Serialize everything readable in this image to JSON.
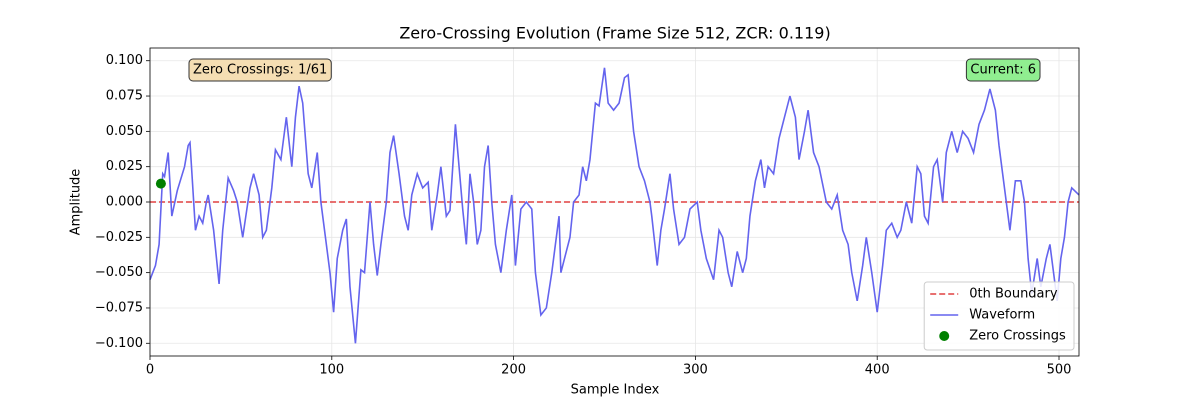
{
  "chart_data": {
    "type": "line",
    "title": "Zero-Crossing Evolution (Frame Size 512, ZCR: 0.119)",
    "xlabel": "Sample Index",
    "ylabel": "Amplitude",
    "xlim": [
      0,
      511
    ],
    "xticks": [
      0,
      100,
      200,
      300,
      400,
      500
    ],
    "ylim": [
      -0.109,
      0.109
    ],
    "yticks": [
      {
        "value": -0.1,
        "label": "−0.100"
      },
      {
        "value": -0.075,
        "label": "−0.075"
      },
      {
        "value": -0.05,
        "label": "−0.050"
      },
      {
        "value": -0.025,
        "label": "−0.025"
      },
      {
        "value": 0,
        "label": "0.000"
      },
      {
        "value": 0.025,
        "label": "0.025"
      },
      {
        "value": 0.05,
        "label": "0.050"
      },
      {
        "value": 0.075,
        "label": "0.075"
      },
      {
        "value": 0.1,
        "label": "0.100"
      }
    ],
    "grid": true,
    "legend": "lower right",
    "hline": {
      "name": "0th Boundary",
      "value": 0,
      "color": "#e04040"
    },
    "series": [
      {
        "name": "Waveform",
        "color": "#6464ee",
        "x": [
          0,
          3,
          5,
          7,
          8,
          10,
          12,
          15,
          19,
          21,
          22,
          25,
          27,
          29,
          31,
          32,
          35,
          38,
          40,
          43,
          46,
          48,
          51,
          55,
          57,
          60,
          62,
          64,
          67,
          69,
          72,
          75,
          78,
          80,
          82,
          84,
          87,
          89,
          92,
          94,
          96,
          99,
          101,
          103,
          106,
          108,
          110,
          113,
          116,
          118,
          121,
          123,
          125,
          127,
          130,
          132,
          134,
          137,
          140,
          142,
          144,
          147,
          150,
          153,
          155,
          158,
          160,
          163,
          165,
          168,
          170,
          172,
          174,
          176,
          178,
          180,
          182,
          184,
          186,
          188,
          190,
          193,
          196,
          199,
          201,
          204,
          207,
          210,
          212,
          215,
          218,
          221,
          223,
          225,
          226,
          229,
          231,
          233,
          236,
          238,
          240,
          242,
          245,
          247,
          250,
          252,
          255,
          258,
          261,
          263,
          266,
          269,
          272,
          275,
          276,
          279,
          281,
          283,
          286,
          288,
          291,
          294,
          297,
          301,
          303,
          306,
          310,
          313,
          315,
          318,
          320,
          323,
          326,
          328,
          330,
          333,
          336,
          338,
          340,
          343,
          346,
          349,
          352,
          355,
          357,
          360,
          362,
          365,
          368,
          372,
          375,
          378,
          381,
          384,
          386,
          389,
          392,
          394,
          397,
          400,
          403,
          405,
          408,
          411,
          413,
          416,
          419,
          422,
          424,
          426,
          428,
          431,
          433,
          436,
          438,
          441,
          444,
          447,
          450,
          453,
          456,
          459,
          462,
          465,
          467,
          469,
          471,
          473,
          476,
          479,
          481,
          483,
          485,
          488,
          490,
          493,
          495,
          497,
          499,
          501,
          503,
          505,
          507,
          511
        ],
        "values": [
          -0.055,
          -0.045,
          -0.03,
          0.02,
          0.018,
          0.035,
          -0.01,
          0.008,
          0.025,
          0.04,
          0.042,
          -0.02,
          -0.01,
          -0.015,
          0,
          0.005,
          -0.02,
          -0.058,
          -0.02,
          0.017,
          0.008,
          0,
          -0.025,
          0.01,
          0.02,
          0.005,
          -0.025,
          -0.02,
          0.01,
          0.037,
          0.03,
          0.06,
          0.025,
          0.06,
          0.082,
          0.07,
          0.02,
          0.01,
          0.035,
          0,
          -0.02,
          -0.05,
          -0.078,
          -0.04,
          -0.02,
          -0.012,
          -0.06,
          -0.1,
          -0.048,
          -0.05,
          0,
          -0.03,
          -0.052,
          -0.03,
          0,
          0.035,
          0.047,
          0.02,
          -0.01,
          -0.02,
          0.005,
          0.02,
          0.01,
          0.014,
          -0.02,
          0.005,
          0.025,
          -0.01,
          -0.006,
          0.055,
          0.025,
          -0.005,
          -0.03,
          0.02,
          0,
          -0.03,
          -0.02,
          0.025,
          0.04,
          0,
          -0.03,
          -0.05,
          -0.02,
          0.005,
          -0.045,
          -0.005,
          0,
          -0.005,
          -0.05,
          -0.08,
          -0.075,
          -0.05,
          -0.03,
          -0.01,
          -0.05,
          -0.035,
          -0.025,
          0,
          0.005,
          0.025,
          0.015,
          0.03,
          0.07,
          0.068,
          0.095,
          0.07,
          0.065,
          0.07,
          0.088,
          0.09,
          0.05,
          0.025,
          0.015,
          0,
          -0.01,
          -0.045,
          -0.02,
          -0.005,
          0.02,
          -0.005,
          -0.03,
          -0.025,
          -0.005,
          0,
          -0.02,
          -0.04,
          -0.055,
          -0.02,
          -0.025,
          -0.05,
          -0.06,
          -0.035,
          -0.05,
          -0.04,
          -0.01,
          0.015,
          0.03,
          0.01,
          0.025,
          0.02,
          0.045,
          0.06,
          0.075,
          0.06,
          0.03,
          0.05,
          0.065,
          0.035,
          0.025,
          0,
          -0.005,
          0.005,
          -0.02,
          -0.03,
          -0.05,
          -0.07,
          -0.045,
          -0.025,
          -0.05,
          -0.078,
          -0.045,
          -0.02,
          -0.015,
          -0.025,
          -0.02,
          0,
          -0.015,
          0.025,
          0.02,
          -0.01,
          -0.015,
          0.025,
          0.03,
          0,
          0.035,
          0.05,
          0.035,
          0.05,
          0.045,
          0.035,
          0.055,
          0.065,
          0.08,
          0.065,
          0.04,
          0.02,
          0,
          -0.02,
          0.015,
          0.015,
          0,
          -0.04,
          -0.065,
          -0.04,
          -0.06,
          -0.04,
          -0.03,
          -0.05,
          -0.07,
          -0.04,
          -0.025,
          0,
          0.01,
          0.005
        ]
      },
      {
        "name": "Zero Crossings",
        "type": "scatter",
        "color": "#008000",
        "x": [
          6
        ],
        "values": [
          0.013
        ]
      }
    ],
    "annotations": [
      {
        "text": "Zero Crossings: 1/61",
        "color": "#f5deb3"
      },
      {
        "text": "Current: 6",
        "color": "#90ee90"
      }
    ]
  }
}
